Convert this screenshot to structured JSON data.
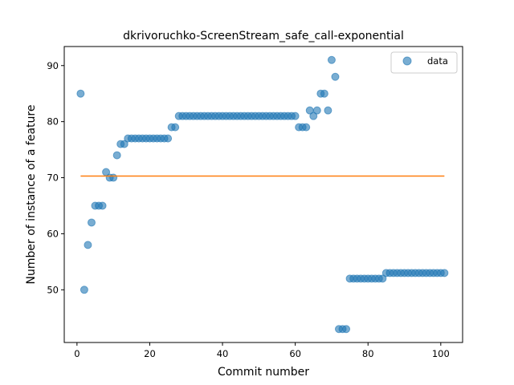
{
  "chart_data": {
    "type": "scatter",
    "title": "dkrivoruchko-ScreenStream_safe_call-exponential",
    "xlabel": "Commit number",
    "ylabel": "Number of instance of a feature",
    "xlim": [
      -3.5,
      106
    ],
    "ylim": [
      40.6,
      93.4
    ],
    "xticks": [
      0,
      20,
      40,
      60,
      80,
      100
    ],
    "yticks": [
      50,
      60,
      70,
      80,
      90
    ],
    "grid": false,
    "legend_position": "top-right",
    "series": [
      {
        "name": "data",
        "kind": "scatter",
        "color": "#1f77b4",
        "x": [
          1,
          2,
          3,
          4,
          5,
          6,
          7,
          8,
          9,
          10,
          11,
          12,
          13,
          14,
          15,
          16,
          17,
          18,
          19,
          20,
          21,
          22,
          23,
          24,
          25,
          26,
          27,
          28,
          29,
          30,
          31,
          32,
          33,
          34,
          35,
          36,
          37,
          38,
          39,
          40,
          41,
          42,
          43,
          44,
          45,
          46,
          47,
          48,
          49,
          50,
          51,
          52,
          53,
          54,
          55,
          56,
          57,
          58,
          59,
          60,
          61,
          62,
          63,
          64,
          65,
          66,
          67,
          68,
          69,
          70,
          71,
          72,
          73,
          74,
          75,
          76,
          77,
          78,
          79,
          80,
          81,
          82,
          83,
          84,
          85,
          86,
          87,
          88,
          89,
          90,
          91,
          92,
          93,
          94,
          95,
          96,
          97,
          98,
          99,
          100,
          101
        ],
        "y": [
          85,
          50,
          58,
          62,
          65,
          65,
          65,
          71,
          70,
          70,
          74,
          76,
          76,
          77,
          77,
          77,
          77,
          77,
          77,
          77,
          77,
          77,
          77,
          77,
          77,
          79,
          79,
          81,
          81,
          81,
          81,
          81,
          81,
          81,
          81,
          81,
          81,
          81,
          81,
          81,
          81,
          81,
          81,
          81,
          81,
          81,
          81,
          81,
          81,
          81,
          81,
          81,
          81,
          81,
          81,
          81,
          81,
          81,
          81,
          81,
          79,
          79,
          79,
          82,
          81,
          82,
          85,
          85,
          82,
          91,
          88,
          43,
          43,
          43,
          52,
          52,
          52,
          52,
          52,
          52,
          52,
          52,
          52,
          52,
          53,
          53,
          53,
          53,
          53,
          53,
          53,
          53,
          53,
          53,
          53,
          53,
          53,
          53,
          53,
          53,
          53
        ]
      },
      {
        "name": "",
        "kind": "line",
        "color": "#ff7f0e",
        "x": [
          1,
          101
        ],
        "y": [
          70.3,
          70.3
        ]
      }
    ]
  }
}
